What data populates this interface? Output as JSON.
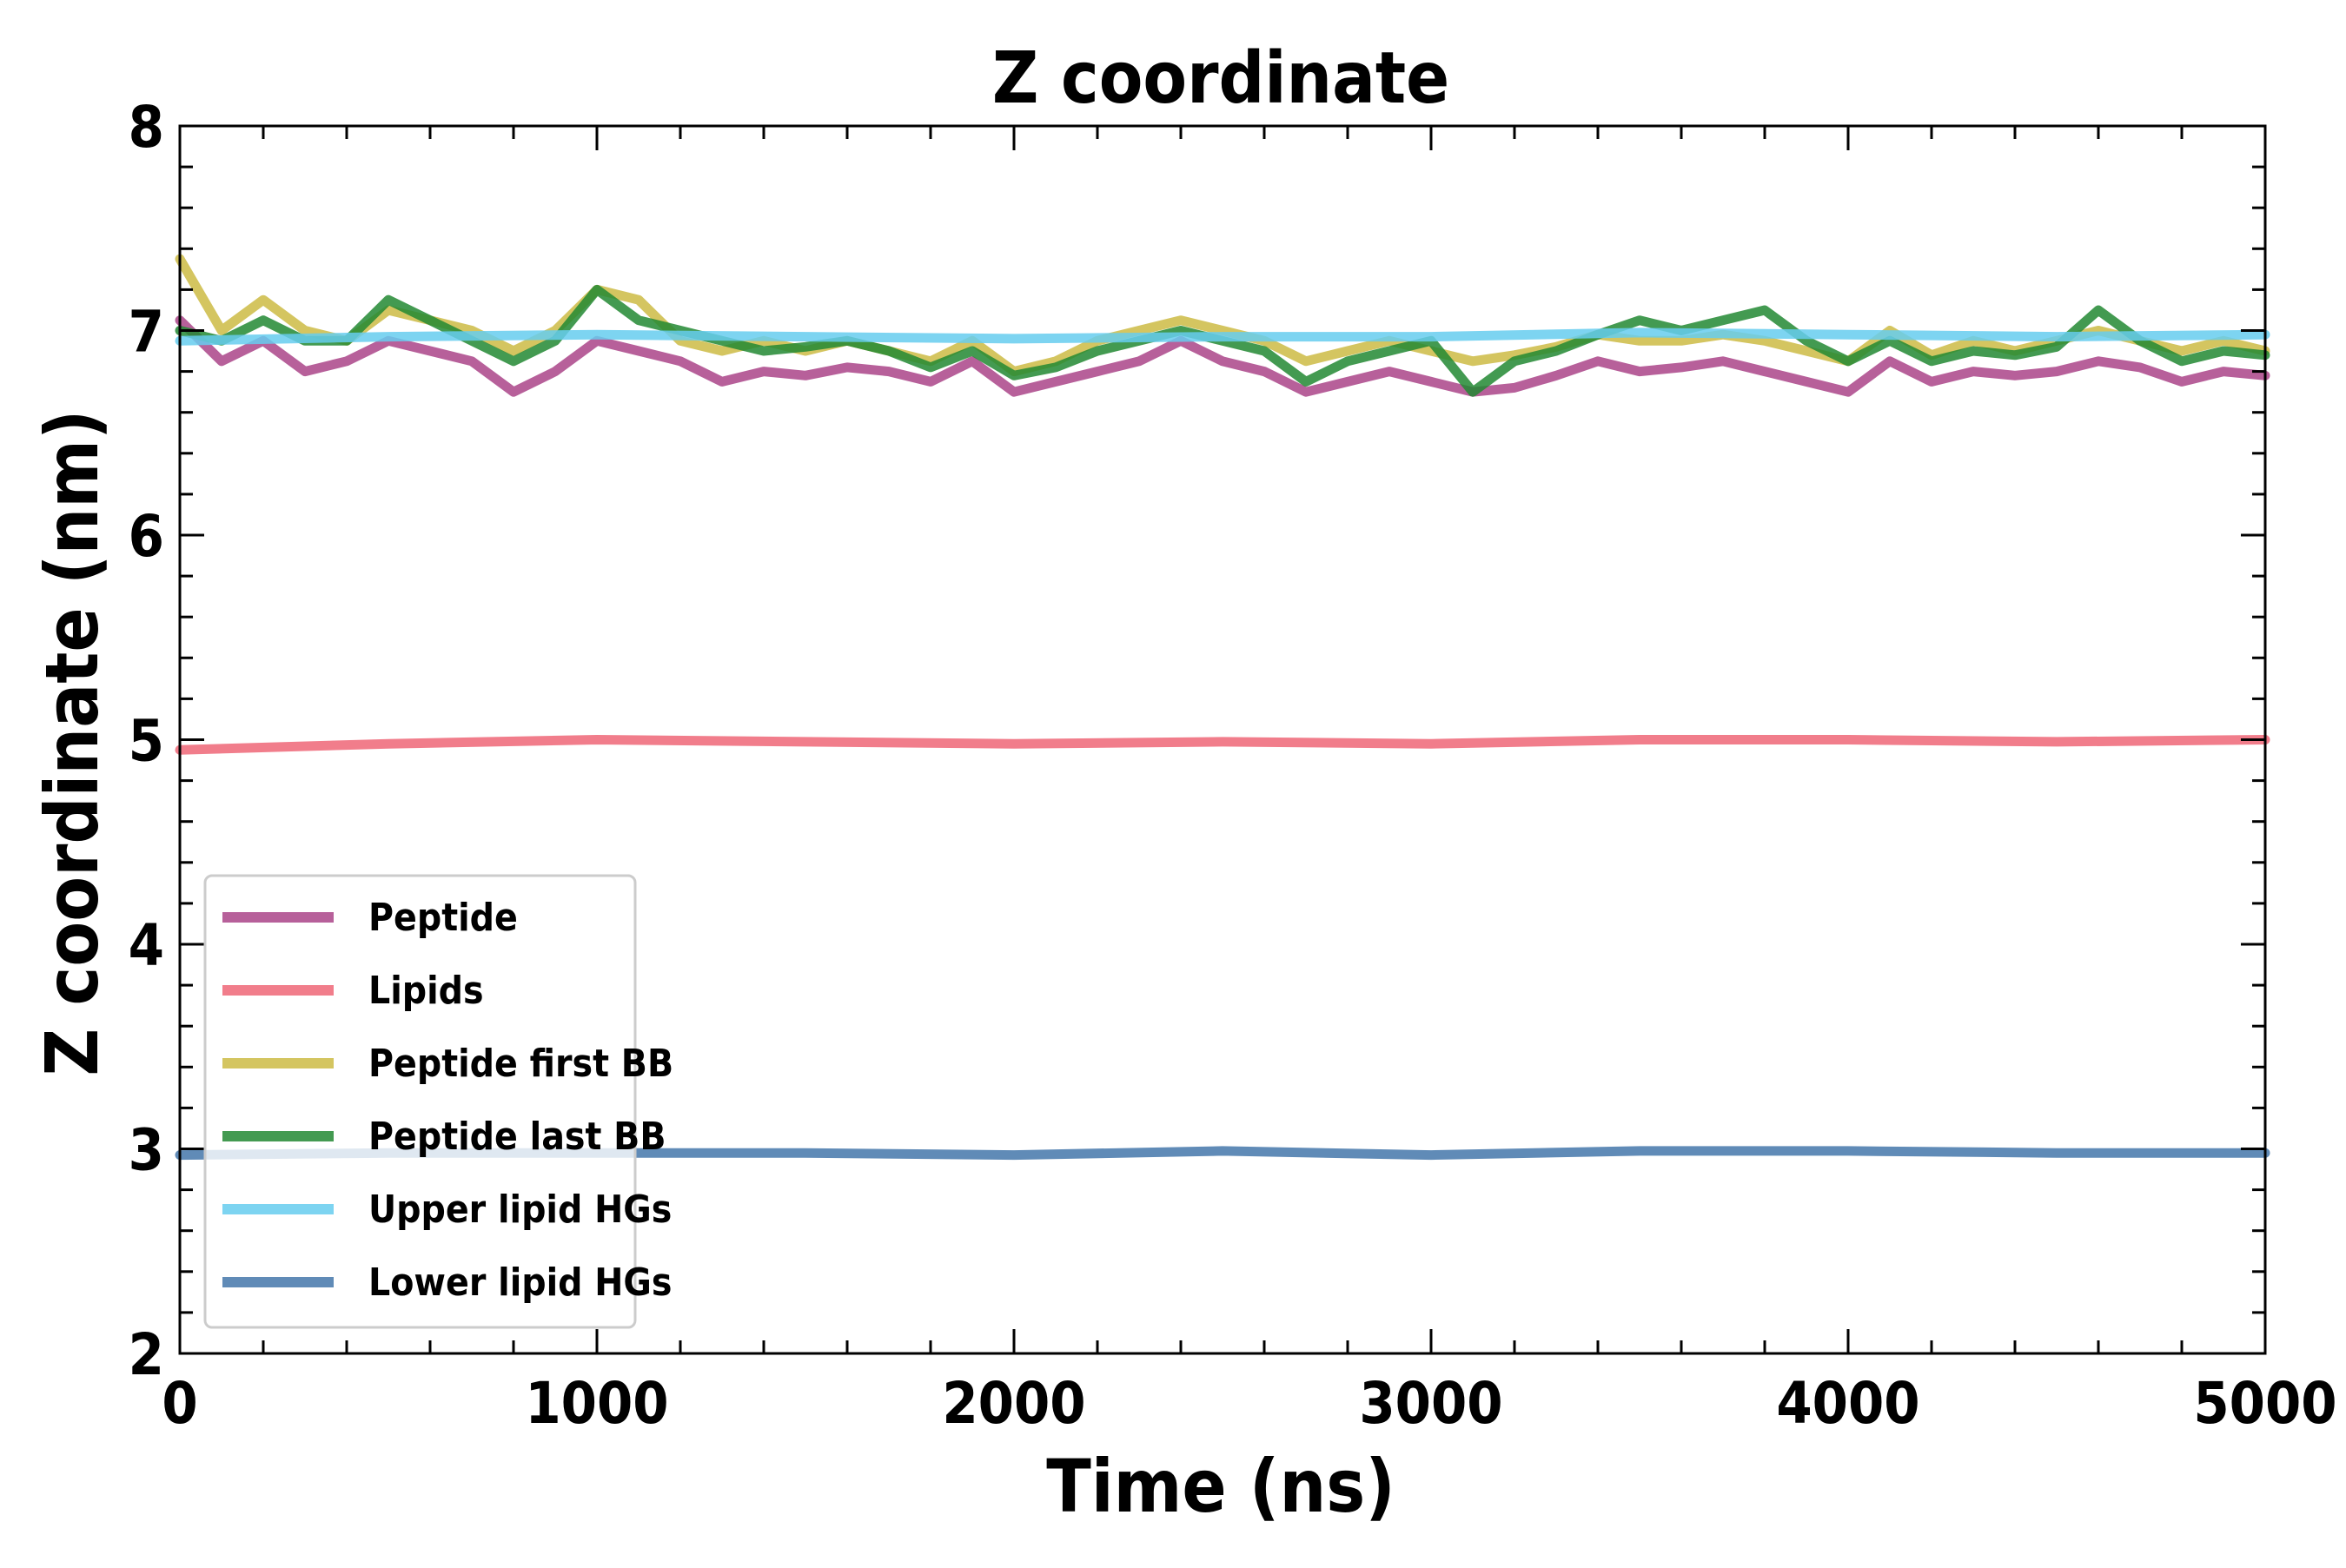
{
  "chart_data": {
    "type": "line",
    "title": "Z coordinate",
    "xlabel": "Time (ns)",
    "ylabel": "Z coordinate (nm)",
    "xlim": [
      0,
      5000
    ],
    "ylim": [
      2,
      8
    ],
    "xticks": [
      "0",
      "1000",
      "2000",
      "3000",
      "4000",
      "5000"
    ],
    "yticks": [
      "2",
      "3",
      "4",
      "5",
      "6",
      "7",
      "8"
    ],
    "grid": false,
    "legend_position": "lower-left",
    "series": [
      {
        "name": "Peptide",
        "color": "#aa4488",
        "x": [
          0,
          100,
          200,
          300,
          400,
          500,
          600,
          700,
          800,
          900,
          1000,
          1100,
          1200,
          1300,
          1400,
          1500,
          1600,
          1700,
          1800,
          1900,
          2000,
          2100,
          2200,
          2300,
          2400,
          2500,
          2600,
          2700,
          2800,
          2900,
          3000,
          3100,
          3200,
          3300,
          3400,
          3500,
          3600,
          3700,
          3800,
          3900,
          4000,
          4100,
          4200,
          4300,
          4400,
          4500,
          4600,
          4700,
          4800,
          4900,
          5000
        ],
        "y": [
          7.05,
          6.85,
          6.95,
          6.8,
          6.85,
          6.95,
          6.9,
          6.85,
          6.7,
          6.8,
          6.95,
          6.9,
          6.85,
          6.75,
          6.8,
          6.78,
          6.82,
          6.8,
          6.75,
          6.85,
          6.7,
          6.75,
          6.8,
          6.85,
          6.95,
          6.85,
          6.8,
          6.7,
          6.75,
          6.8,
          6.75,
          6.7,
          6.72,
          6.78,
          6.85,
          6.8,
          6.82,
          6.85,
          6.8,
          6.75,
          6.7,
          6.85,
          6.75,
          6.8,
          6.78,
          6.8,
          6.85,
          6.82,
          6.75,
          6.8,
          6.78
        ]
      },
      {
        "name": "Lipids",
        "color": "#ee6677",
        "x": [
          0,
          500,
          1000,
          1500,
          2000,
          2500,
          3000,
          3500,
          4000,
          4500,
          5000
        ],
        "y": [
          4.95,
          4.98,
          5.0,
          4.99,
          4.98,
          4.99,
          4.98,
          5.0,
          5.0,
          4.99,
          5.0
        ]
      },
      {
        "name": "Peptide first BB",
        "color": "#ccbb44",
        "x": [
          0,
          100,
          200,
          300,
          400,
          500,
          600,
          700,
          800,
          900,
          1000,
          1100,
          1200,
          1300,
          1400,
          1500,
          1600,
          1700,
          1800,
          1900,
          2000,
          2100,
          2200,
          2300,
          2400,
          2500,
          2600,
          2700,
          2800,
          2900,
          3000,
          3100,
          3200,
          3300,
          3400,
          3500,
          3600,
          3700,
          3800,
          3900,
          4000,
          4100,
          4200,
          4300,
          4400,
          4500,
          4600,
          4700,
          4800,
          4900,
          5000
        ],
        "y": [
          7.35,
          7.0,
          7.15,
          7.0,
          6.95,
          7.1,
          7.05,
          7.0,
          6.9,
          7.0,
          7.2,
          7.15,
          6.95,
          6.9,
          6.95,
          6.9,
          6.95,
          6.9,
          6.85,
          6.95,
          6.8,
          6.85,
          6.95,
          7.0,
          7.05,
          7.0,
          6.95,
          6.85,
          6.9,
          6.95,
          6.9,
          6.85,
          6.88,
          6.92,
          6.98,
          6.95,
          6.95,
          6.98,
          6.95,
          6.9,
          6.85,
          7.0,
          6.88,
          6.95,
          6.9,
          6.95,
          7.0,
          6.95,
          6.9,
          6.95,
          6.9
        ]
      },
      {
        "name": "Peptide last BB",
        "color": "#228833",
        "x": [
          0,
          100,
          200,
          300,
          400,
          500,
          600,
          700,
          800,
          900,
          1000,
          1100,
          1200,
          1300,
          1400,
          1500,
          1600,
          1700,
          1800,
          1900,
          2000,
          2100,
          2200,
          2300,
          2400,
          2500,
          2600,
          2700,
          2800,
          2900,
          3000,
          3100,
          3200,
          3300,
          3400,
          3500,
          3600,
          3700,
          3800,
          3900,
          4000,
          4100,
          4200,
          4300,
          4400,
          4500,
          4600,
          4700,
          4800,
          4900,
          5000
        ],
        "y": [
          7.0,
          6.95,
          7.05,
          6.95,
          6.95,
          7.15,
          7.05,
          6.95,
          6.85,
          6.95,
          7.2,
          7.05,
          7.0,
          6.95,
          6.9,
          6.92,
          6.95,
          6.9,
          6.82,
          6.9,
          6.78,
          6.82,
          6.9,
          6.95,
          7.0,
          6.95,
          6.9,
          6.75,
          6.85,
          6.9,
          6.95,
          6.7,
          6.85,
          6.9,
          6.98,
          7.05,
          7.0,
          7.05,
          7.1,
          6.95,
          6.85,
          6.95,
          6.85,
          6.9,
          6.88,
          6.92,
          7.1,
          6.95,
          6.85,
          6.9,
          6.88
        ]
      },
      {
        "name": "Upper lipid HGs",
        "color": "#66ccee",
        "x": [
          0,
          500,
          1000,
          1500,
          2000,
          2500,
          3000,
          3500,
          4000,
          4500,
          5000
        ],
        "y": [
          6.95,
          6.97,
          6.98,
          6.97,
          6.96,
          6.97,
          6.97,
          6.99,
          6.98,
          6.97,
          6.98
        ]
      },
      {
        "name": "Lower lipid HGs",
        "color": "#4477aa",
        "x": [
          0,
          500,
          1000,
          1500,
          2000,
          2500,
          3000,
          3500,
          4000,
          4500,
          5000
        ],
        "y": [
          2.97,
          2.98,
          2.98,
          2.98,
          2.97,
          2.99,
          2.97,
          2.99,
          2.99,
          2.98,
          2.98
        ]
      }
    ]
  }
}
